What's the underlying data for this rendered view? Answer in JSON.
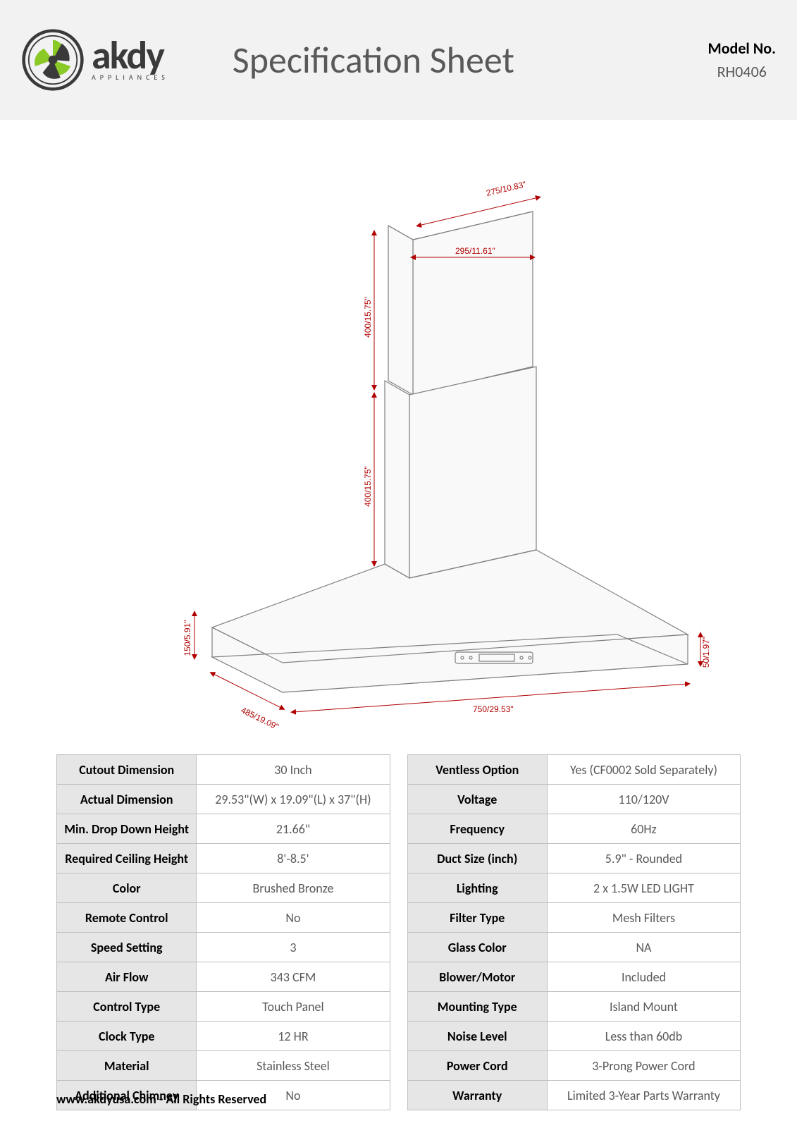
{
  "header": {
    "logo_name": "akdy",
    "logo_sub": "APPLIANCES",
    "title": "Specification Sheet",
    "model_label": "Model No.",
    "model_no": "RH0406",
    "logo_green": "#8ac926",
    "logo_dark": "#3a3a3a"
  },
  "diagram": {
    "dims": {
      "top_diag": "275/10.83\"",
      "top_width": "295/11.61\"",
      "upper_h": "400/15.75\"",
      "lower_h": "400/15.75\"",
      "left_h": "150/5.91\"",
      "left_diag": "485/19.09\"",
      "bottom_w": "750/29.53\"",
      "right_h": "50/1.97\""
    },
    "colors": {
      "dim": "#b00000",
      "line": "#808080",
      "fill": "#f9f9f9"
    }
  },
  "left_table": [
    {
      "label": "Cutout Dimension",
      "value": "30 Inch"
    },
    {
      "label": "Actual Dimension",
      "value": "29.53\"(W) x 19.09\"(L) x 37\"(H)"
    },
    {
      "label": "Min. Drop Down Height",
      "value": "21.66\""
    },
    {
      "label": "Required Ceiling Height",
      "value": "8'-8.5'"
    },
    {
      "label": "Color",
      "value": "Brushed Bronze"
    },
    {
      "label": "Remote Control",
      "value": "No"
    },
    {
      "label": "Speed Setting",
      "value": "3"
    },
    {
      "label": "Air Flow",
      "value": "343 CFM"
    },
    {
      "label": "Control Type",
      "value": "Touch Panel"
    },
    {
      "label": "Clock Type",
      "value": "12 HR"
    },
    {
      "label": "Material",
      "value": "Stainless Steel"
    },
    {
      "label": "Additional Chimney",
      "value": "No"
    }
  ],
  "right_table": [
    {
      "label": "Ventless Option",
      "value": "Yes (CF0002 Sold Separately)"
    },
    {
      "label": "Voltage",
      "value": "110/120V"
    },
    {
      "label": "Frequency",
      "value": "60Hz"
    },
    {
      "label": "Duct Size (inch)",
      "value": "5.9\" - Rounded"
    },
    {
      "label": "Lighting",
      "value": "2 x 1.5W LED LIGHT"
    },
    {
      "label": "Filter Type",
      "value": "Mesh Filters"
    },
    {
      "label": "Glass Color",
      "value": "NA"
    },
    {
      "label": "Blower/Motor",
      "value": "Included"
    },
    {
      "label": "Mounting Type",
      "value": "Island Mount"
    },
    {
      "label": "Noise Level",
      "value": "Less than 60db"
    },
    {
      "label": "Power Cord",
      "value": "3-Prong Power Cord"
    },
    {
      "label": "Warranty",
      "value": "Limited 3-Year Parts Warranty"
    }
  ],
  "footer": "www.akdyusa.com - All Rights Reserved"
}
